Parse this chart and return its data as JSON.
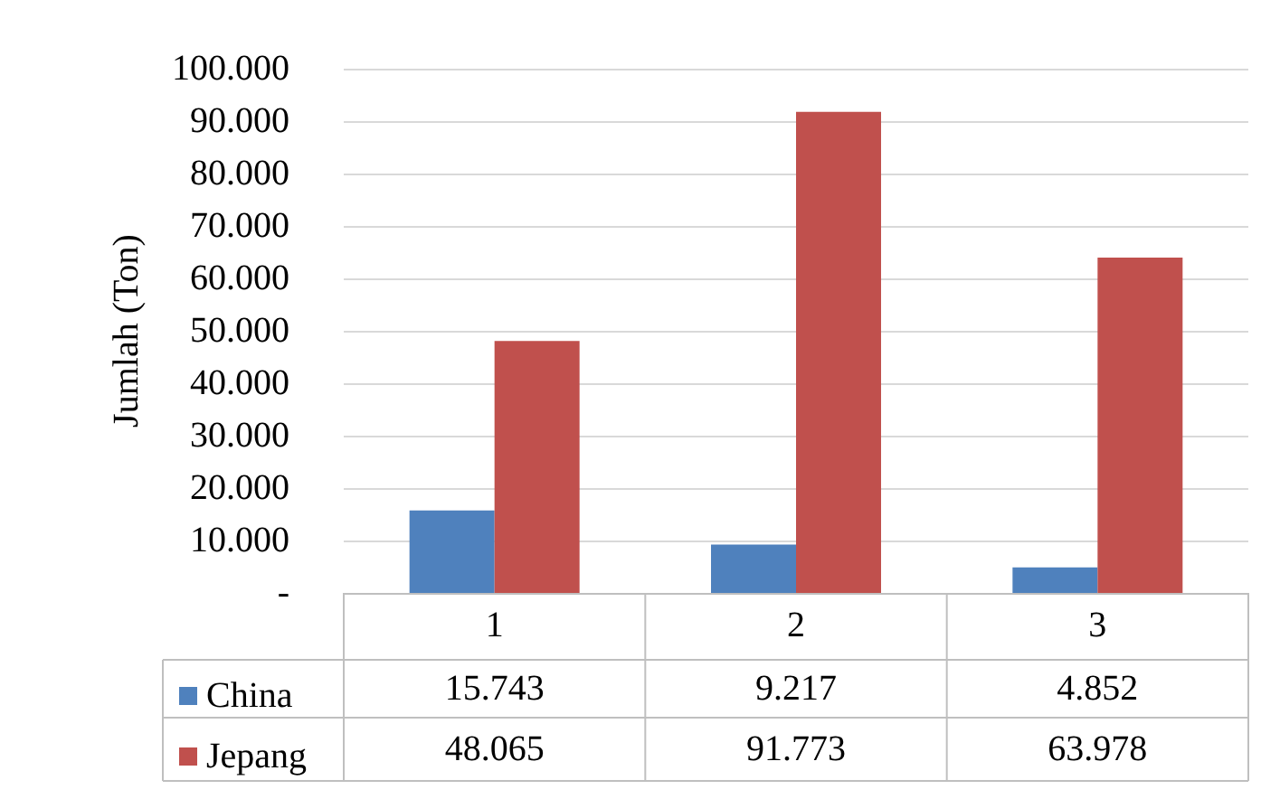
{
  "chart_data": {
    "type": "bar",
    "ylabel": "Jumlah (Ton)",
    "categories": [
      "1",
      "2",
      "3"
    ],
    "series": [
      {
        "name": "China",
        "color": "#4f81bd",
        "values": [
          15743,
          9217,
          4852
        ],
        "value_labels": [
          "15.743",
          "9.217",
          "4.852"
        ]
      },
      {
        "name": "Jepang",
        "color": "#c0504d",
        "values": [
          48065,
          91773,
          63978
        ],
        "value_labels": [
          "48.065",
          "91.773",
          "63.978"
        ]
      }
    ],
    "ylim": [
      0,
      100000
    ],
    "yticks": [
      {
        "value": 0,
        "label": "-"
      },
      {
        "value": 10000,
        "label": "10.000"
      },
      {
        "value": 20000,
        "label": "20.000"
      },
      {
        "value": 30000,
        "label": "30.000"
      },
      {
        "value": 40000,
        "label": "40.000"
      },
      {
        "value": 50000,
        "label": "50.000"
      },
      {
        "value": 60000,
        "label": "60.000"
      },
      {
        "value": 70000,
        "label": "70.000"
      },
      {
        "value": 80000,
        "label": "80.000"
      },
      {
        "value": 90000,
        "label": "90.000"
      },
      {
        "value": 100000,
        "label": "100.000"
      }
    ],
    "grid": "y",
    "legend": "bottom"
  }
}
